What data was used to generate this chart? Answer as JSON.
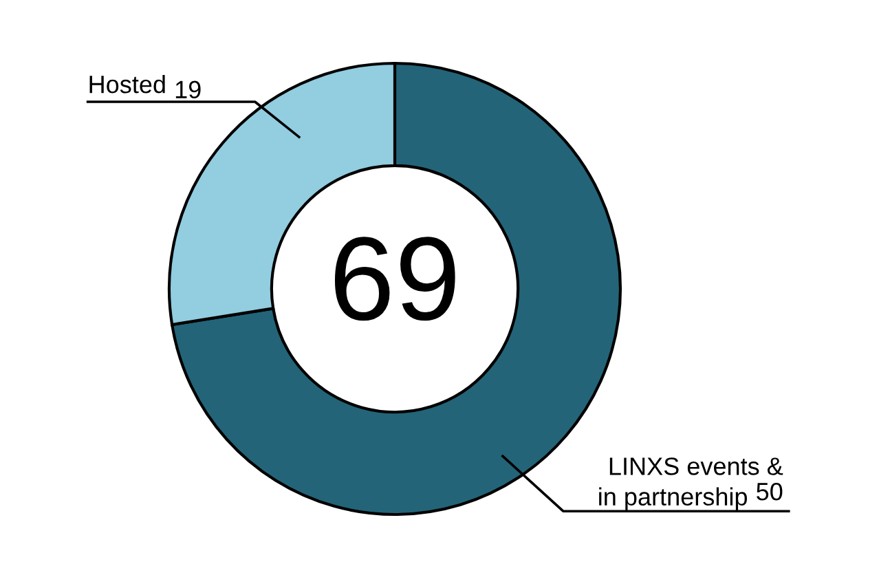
{
  "chart_data": {
    "type": "donut",
    "categories": [
      "LINXS events & in partnership",
      "Hosted"
    ],
    "values": [
      50,
      19
    ],
    "colors": [
      "#236478",
      "#92cde0"
    ],
    "data_labels": true,
    "annotations": [
      "69"
    ],
    "legend": false
  }
}
